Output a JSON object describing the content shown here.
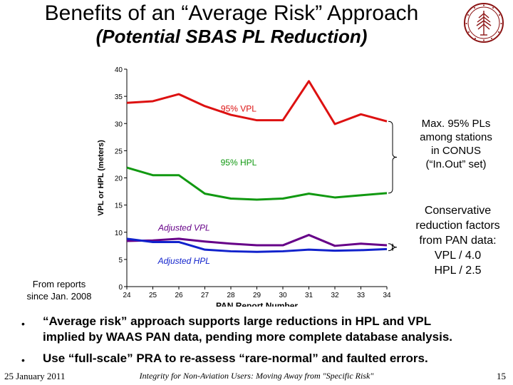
{
  "slide": {
    "title": "Benefits of an “Average Risk” Approach",
    "subtitle": "(Potential SBAS PL Reduction)"
  },
  "notes": {
    "max_pls": [
      "Max. 95% PLs",
      "among stations",
      "in CONUS",
      "(“In.Out” set)"
    ],
    "conservative": [
      "Conservative",
      "reduction factors",
      "from PAN data:",
      "VPL / 4.0",
      "HPL / 2.5"
    ],
    "from_reports": [
      "From reports",
      "since Jan. 2008"
    ]
  },
  "bullets": [
    {
      "marker": "•",
      "lines": [
        "“Average risk” approach supports large reductions in HPL and VPL",
        "implied by WAAS PAN data, pending more complete database analysis."
      ]
    },
    {
      "marker": "•",
      "lines": [
        "Use “full-scale” PRA to re-assess “rare-normal” and faulted errors."
      ]
    }
  ],
  "footer": {
    "date": "25 January 2011",
    "title": "Integrity for Non-Aviation Users: Moving Away from \"Specific Risk\"",
    "page": "15"
  },
  "colors": {
    "vpl": "#dd1111",
    "hpl": "#119911",
    "adj_vpl": "#660088",
    "adj_hpl": "#1122cc",
    "logo": "#8c1515"
  },
  "logo_icon": "stanford-tree-seal-icon",
  "chart_data": {
    "type": "line",
    "x": [
      24,
      25,
      26,
      27,
      28,
      29,
      30,
      31,
      32,
      33,
      34
    ],
    "xlabel": "PAN Report Number",
    "ylabel": "VPL or HPL (meters)",
    "xlim": [
      24,
      34
    ],
    "ylim": [
      0,
      40
    ],
    "yticks": [
      0,
      5,
      10,
      15,
      20,
      25,
      30,
      35,
      40
    ],
    "grid": false,
    "series": [
      {
        "name": "95% VPL",
        "color": "#dd1111",
        "values": [
          33.8,
          34.1,
          35.4,
          33.2,
          31.6,
          30.6,
          30.6,
          37.8,
          29.9,
          31.7,
          30.4
        ]
      },
      {
        "name": "95% HPL",
        "color": "#119911",
        "values": [
          21.9,
          20.5,
          20.5,
          17.1,
          16.2,
          16.0,
          16.2,
          17.1,
          16.4,
          16.8,
          17.2
        ]
      },
      {
        "name": "Adjusted VPL",
        "color": "#660088",
        "values": [
          8.4,
          8.5,
          8.8,
          8.3,
          7.9,
          7.6,
          7.6,
          9.5,
          7.5,
          7.9,
          7.6
        ]
      },
      {
        "name": "Adjusted HPL",
        "color": "#1122cc",
        "values": [
          8.8,
          8.2,
          8.2,
          6.8,
          6.5,
          6.4,
          6.5,
          6.8,
          6.6,
          6.7,
          6.9
        ]
      }
    ]
  }
}
